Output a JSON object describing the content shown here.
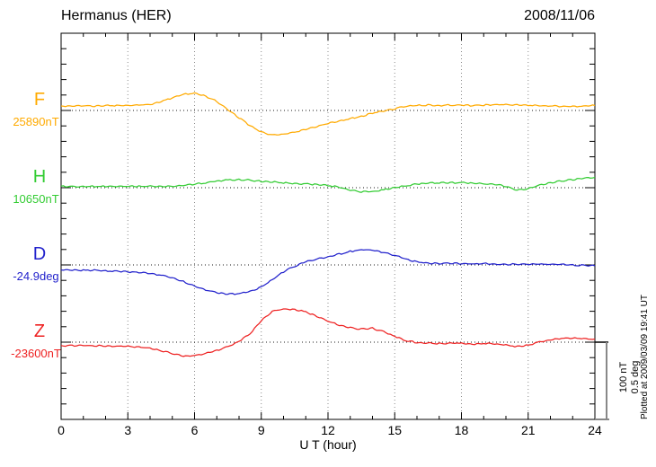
{
  "header": {
    "title": "Hermanus (HER)",
    "date": "2008/11/06"
  },
  "channels": [
    {
      "label": "F",
      "baseline_label": "25890nT",
      "color": "#FFAA00"
    },
    {
      "label": "H",
      "baseline_label": "10650nT",
      "color": "#33CC33"
    },
    {
      "label": "D",
      "baseline_label": "-24.9deg",
      "color": "#2222CC"
    },
    {
      "label": "Z",
      "baseline_label": "-23600nT",
      "color": "#EE2222"
    }
  ],
  "axis": {
    "x_label": "U T (hour)",
    "x_ticks": [
      0,
      3,
      6,
      9,
      12,
      15,
      18,
      21,
      24
    ]
  },
  "scale_bar": {
    "labels": [
      "100 nT",
      "0.5 deg"
    ]
  },
  "footnote": "Plotted at 2009/03/09 19:41 UT",
  "chart_data": {
    "type": "line",
    "title": "Hermanus (HER)",
    "date": "2008/11/06",
    "xlabel": "U T (hour)",
    "x_range": [
      0,
      24
    ],
    "x_tick_step": 3,
    "x_minor_tick_step": 1,
    "x_sample_step_hours": 0.5,
    "grid": "dotted vertical gridlines every 3 h; dotted horizontal baseline per channel; minor y ticks every 20 nT (0.1 deg), major every 100 nT (0.5 deg)",
    "scale_reference": {
      "nT_per_division": 100,
      "deg_per_division": 0.5
    },
    "series": [
      {
        "name": "F",
        "unit": "nT",
        "baseline_value": 25890,
        "baseline_label": "25890nT",
        "color": "#FFAA00",
        "values": [
          5.8,
          5.8,
          5.8,
          5.8,
          6.4,
          6.4,
          6.4,
          7.0,
          7.6,
          11.6,
          16.3,
          20.9,
          22.7,
          18.6,
          11.6,
          1.2,
          -9.3,
          -19.8,
          -27.9,
          -32.0,
          -30.8,
          -27.9,
          -24.4,
          -20.9,
          -16.9,
          -14.0,
          -10.5,
          -7.6,
          -3.5,
          -0.6,
          2.3,
          5.2,
          6.4,
          7.0,
          6.4,
          7.0,
          7.0,
          6.4,
          7.0,
          7.6,
          7.6,
          7.0,
          7.0,
          6.4,
          5.8,
          5.2,
          5.2,
          5.8,
          6.4
        ]
      },
      {
        "name": "H",
        "unit": "nT",
        "baseline_value": 10650,
        "baseline_label": "10650nT",
        "color": "#33CC33",
        "values": [
          1.7,
          1.7,
          1.7,
          1.7,
          1.7,
          1.7,
          1.7,
          1.7,
          1.7,
          1.7,
          1.7,
          2.9,
          4.7,
          6.4,
          8.7,
          9.9,
          10.5,
          9.9,
          8.1,
          7.6,
          6.4,
          5.2,
          4.7,
          4.1,
          2.9,
          0.6,
          -2.9,
          -5.2,
          -5.2,
          -2.9,
          0.0,
          2.3,
          4.7,
          5.8,
          6.4,
          6.4,
          6.4,
          5.8,
          5.2,
          4.7,
          1.7,
          -2.9,
          -1.2,
          2.9,
          6.4,
          8.7,
          10.5,
          12.2,
          13.4
        ]
      },
      {
        "name": "D",
        "unit": "deg",
        "baseline_value": -24.9,
        "baseline_label": "-24.9deg",
        "color": "#2222CC",
        "values": [
          -0.032,
          -0.032,
          -0.035,
          -0.035,
          -0.038,
          -0.041,
          -0.044,
          -0.049,
          -0.055,
          -0.067,
          -0.084,
          -0.108,
          -0.137,
          -0.163,
          -0.18,
          -0.189,
          -0.186,
          -0.172,
          -0.142,
          -0.096,
          -0.044,
          -0.009,
          0.02,
          0.038,
          0.052,
          0.07,
          0.087,
          0.099,
          0.096,
          0.081,
          0.061,
          0.038,
          0.02,
          0.012,
          0.009,
          0.012,
          0.009,
          0.006,
          0.009,
          0.006,
          0.003,
          0.006,
          0.003,
          0.006,
          0.003,
          0.003,
          0.0,
          -0.003,
          -0.006
        ]
      },
      {
        "name": "Z",
        "unit": "nT",
        "baseline_value": -23600,
        "baseline_label": "-23600nT",
        "color": "#EE2222",
        "values": [
          -4.7,
          -4.7,
          -4.1,
          -4.7,
          -4.7,
          -5.2,
          -5.2,
          -6.4,
          -8.1,
          -11.0,
          -14.5,
          -18.0,
          -17.4,
          -14.5,
          -11.0,
          -5.8,
          1.2,
          11.0,
          27.9,
          40.1,
          43.0,
          42.4,
          39.0,
          33.7,
          27.3,
          22.1,
          18.6,
          16.9,
          18.0,
          13.4,
          7.6,
          2.3,
          -0.6,
          -1.2,
          -1.7,
          -1.2,
          -1.7,
          -2.3,
          -1.7,
          -2.3,
          -3.5,
          -5.8,
          -4.1,
          0.0,
          2.9,
          5.2,
          5.2,
          4.7,
          4.1
        ]
      }
    ]
  }
}
